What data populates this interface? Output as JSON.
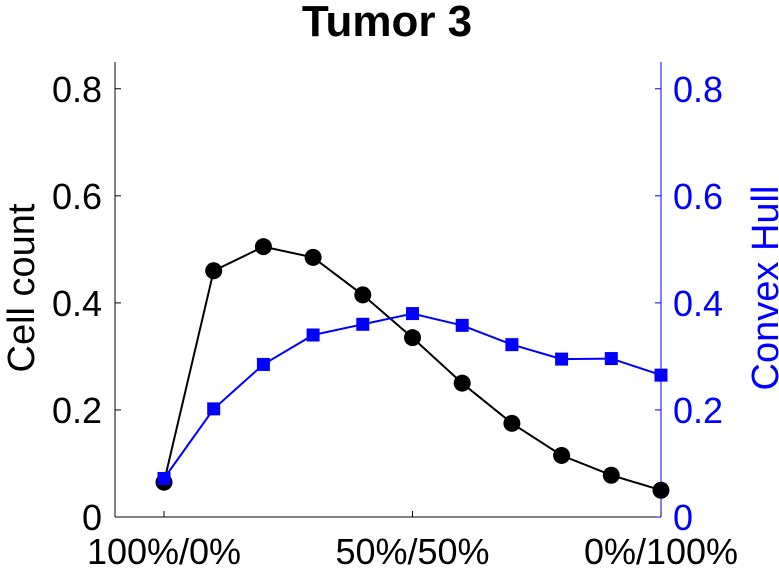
{
  "chart_data": {
    "type": "line",
    "title": "Tumor 3",
    "x": [
      0,
      1,
      2,
      3,
      4,
      5,
      6,
      7,
      8,
      9,
      10
    ],
    "x_tick_positions": [
      0,
      5,
      10
    ],
    "x_tick_labels": [
      "100%/0%",
      "50%/50%",
      "0%/100%"
    ],
    "xlim": [
      0,
      10
    ],
    "ylim_left": [
      0,
      0.85
    ],
    "ylim_right": [
      0,
      0.85
    ],
    "y_ticks": [
      0,
      0.2,
      0.4,
      0.6,
      0.8
    ],
    "y_tick_labels": [
      "0",
      "0.2",
      "0.4",
      "0.6",
      "0.8"
    ],
    "ylabel_left": "Cell count",
    "ylabel_right": "Convex Hull",
    "grid": false,
    "series": [
      {
        "name": "Cell count",
        "axis": "left",
        "color": "#000000",
        "marker": "circle",
        "values": [
          0.065,
          0.46,
          0.505,
          0.485,
          0.415,
          0.335,
          0.25,
          0.175,
          0.115,
          0.078,
          0.05
        ]
      },
      {
        "name": "Convex Hull",
        "axis": "right",
        "color": "#0000ff",
        "marker": "square",
        "values": [
          0.072,
          0.202,
          0.285,
          0.34,
          0.36,
          0.38,
          0.358,
          0.322,
          0.295,
          0.296,
          0.265
        ]
      }
    ],
    "colors": {
      "left_axis": "#000000",
      "right_axis": "#0000ff"
    }
  }
}
